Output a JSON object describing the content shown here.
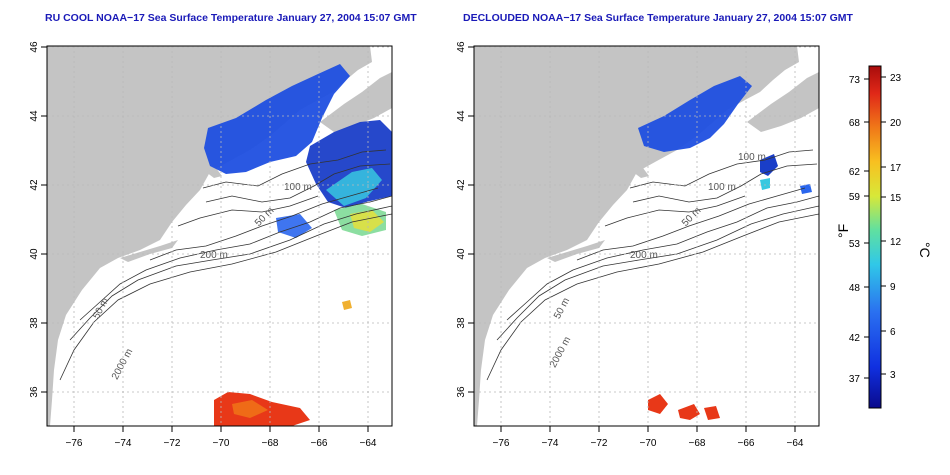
{
  "panels": [
    {
      "id": "left",
      "title": "RU COOL NOAA−17 Sea Surface Temperature January 27, 2004 15:07 GMT",
      "contour_labels": [
        "100 m",
        "50 m",
        "200 m",
        "50 m",
        "2000 m"
      ]
    },
    {
      "id": "right",
      "title": "DECLOUDED NOAA−17 Sea Surface Temperature January 27, 2004 15:07 GMT",
      "contour_labels": [
        "100 m",
        "100 m",
        "50 m",
        "200 m",
        "50 m",
        "2000 m"
      ]
    }
  ],
  "axes": {
    "x_ticks": [
      "−76",
      "−74",
      "−72",
      "−70",
      "−68",
      "−66",
      "−64"
    ],
    "y_ticks": [
      "36",
      "38",
      "40",
      "42",
      "44",
      "46"
    ]
  },
  "colorbar": {
    "fahrenheit_label": "°F",
    "celsius_label": "°C",
    "fahrenheit_ticks": [
      "73",
      "68",
      "62",
      "59",
      "53",
      "48",
      "42",
      "37"
    ],
    "celsius_ticks": [
      "23",
      "20",
      "17",
      "15",
      "12",
      "9",
      "6",
      "3"
    ],
    "gradient_colors": [
      "#0a0a8c",
      "#1030e0",
      "#2a70f0",
      "#30c8e8",
      "#60e0a0",
      "#d8e838",
      "#f8c020",
      "#f07818",
      "#e02818",
      "#a80c0c"
    ]
  },
  "colors": {
    "land": "#c4c4c4",
    "ocean": "#ffffff",
    "title": "#1a1ab8",
    "contour": "#333333",
    "grid": "#b8b8b8"
  }
}
